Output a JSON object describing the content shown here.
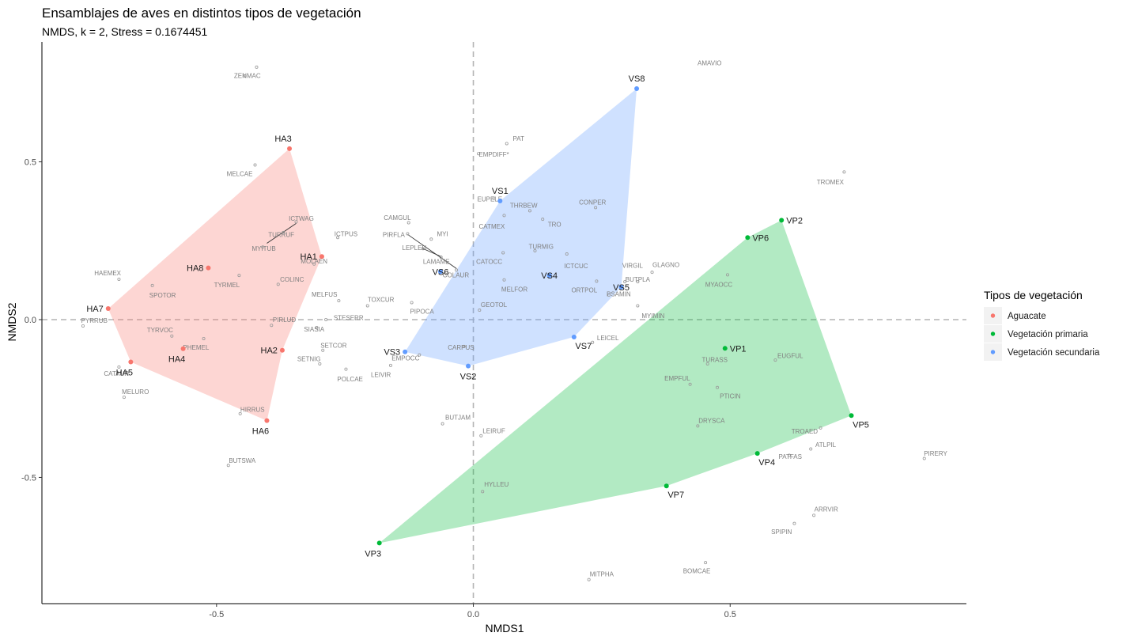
{
  "chart_data": {
    "type": "scatter",
    "title": "Ensamblajes de aves en distintos tipos de vegetación",
    "subtitle": "NMDS, k = 2, Stress = 0.1674451",
    "xlabel": "NMDS1",
    "ylabel": "NMDS2",
    "xlim": [
      -0.84,
      0.96
    ],
    "ylim": [
      -0.9,
      0.88
    ],
    "x_ticks": [
      -0.5,
      0.0,
      0.5
    ],
    "x_tick_labels": [
      "-0.5",
      "0.0",
      "0.5"
    ],
    "y_ticks": [
      -0.5,
      0.0,
      0.5
    ],
    "y_tick_labels": [
      "-0.5",
      "0.0",
      "0.5"
    ],
    "reference_lines": {
      "x": 0,
      "y": 0,
      "style": "dashed"
    },
    "grid": false,
    "legend": {
      "title": "Tipos de vegetación",
      "position": "right",
      "entries": [
        {
          "label": "Aguacate",
          "color": "#F8766D"
        },
        {
          "label": "Vegetación primaria",
          "color": "#00BA38"
        },
        {
          "label": "Vegetación secundaria",
          "color": "#619CFF"
        }
      ]
    },
    "groups": [
      {
        "name": "Aguacate",
        "color": "#F8766D",
        "fill": "#F8766D",
        "hull": [
          "HA3",
          "HA1",
          "HA2",
          "HA6",
          "HA5",
          "HA7"
        ]
      },
      {
        "name": "Vegetación primaria",
        "color": "#00BA38",
        "fill": "#00BA38",
        "hull": [
          "VP2",
          "VP5",
          "VP4",
          "VP7",
          "VP3",
          "VP6"
        ]
      },
      {
        "name": "Vegetación secundaria",
        "color": "#619CFF",
        "fill": "#619CFF",
        "hull": [
          "VS8",
          "VS5",
          "VS7",
          "VS2",
          "VS3",
          "VS1"
        ]
      }
    ],
    "sites": [
      {
        "label": "HA1",
        "group": "Aguacate",
        "x": -0.295,
        "y": 0.2,
        "dx": -1,
        "dy": 0
      },
      {
        "label": "HA2",
        "group": "Aguacate",
        "x": -0.372,
        "y": -0.097,
        "dx": -1,
        "dy": 0
      },
      {
        "label": "HA3",
        "group": "Aguacate",
        "x": -0.358,
        "y": 0.542,
        "dx": -1,
        "dy": -1
      },
      {
        "label": "HA4",
        "group": "Aguacate",
        "x": -0.565,
        "y": -0.092,
        "dx": -1,
        "dy": 1
      },
      {
        "label": "HA5",
        "group": "Aguacate",
        "x": -0.667,
        "y": -0.134,
        "dx": -1,
        "dy": 1
      },
      {
        "label": "HA6",
        "group": "Aguacate",
        "x": -0.402,
        "y": -0.32,
        "dx": -1,
        "dy": 1
      },
      {
        "label": "HA7",
        "group": "Aguacate",
        "x": -0.711,
        "y": 0.035,
        "dx": -1,
        "dy": 0
      },
      {
        "label": "HA8",
        "group": "Aguacate",
        "x": -0.516,
        "y": 0.164,
        "dx": -1,
        "dy": 0
      },
      {
        "label": "VP1",
        "group": "Vegetación primaria",
        "x": 0.49,
        "y": -0.091,
        "dx": 1,
        "dy": 0
      },
      {
        "label": "VP2",
        "group": "Vegetación primaria",
        "x": 0.6,
        "y": 0.315,
        "dx": 1,
        "dy": 0
      },
      {
        "label": "VP3",
        "group": "Vegetación primaria",
        "x": -0.183,
        "y": -0.708,
        "dx": -1,
        "dy": 1
      },
      {
        "label": "VP4",
        "group": "Vegetación primaria",
        "x": 0.553,
        "y": -0.424,
        "dx": 1,
        "dy": 1
      },
      {
        "label": "VP5",
        "group": "Vegetación primaria",
        "x": 0.736,
        "y": -0.304,
        "dx": 1,
        "dy": 1
      },
      {
        "label": "VP6",
        "group": "Vegetación primaria",
        "x": 0.534,
        "y": 0.26,
        "dx": 1,
        "dy": 0
      },
      {
        "label": "VP7",
        "group": "Vegetación primaria",
        "x": 0.376,
        "y": -0.527,
        "dx": 1,
        "dy": 1
      },
      {
        "label": "VS1",
        "group": "Vegetación secundaria",
        "x": 0.052,
        "y": 0.376,
        "dx": 0,
        "dy": -1
      },
      {
        "label": "VS2",
        "group": "Vegetación secundaria",
        "x": -0.01,
        "y": -0.147,
        "dx": 0,
        "dy": 1
      },
      {
        "label": "VS3",
        "group": "Vegetación secundaria",
        "x": -0.133,
        "y": -0.102,
        "dx": -1,
        "dy": 0
      },
      {
        "label": "VS4",
        "group": "Vegetación secundaria",
        "x": 0.148,
        "y": 0.14,
        "dx": 0,
        "dy": 0
      },
      {
        "label": "VS5",
        "group": "Vegetación secundaria",
        "x": 0.288,
        "y": 0.103,
        "dx": 0,
        "dy": 0
      },
      {
        "label": "VS6",
        "group": "Vegetación secundaria",
        "x": -0.064,
        "y": 0.152,
        "dx": 0,
        "dy": 0
      },
      {
        "label": "VS7",
        "group": "Vegetación secundaria",
        "x": 0.196,
        "y": -0.055,
        "dx": 1,
        "dy": 1
      },
      {
        "label": "VS8",
        "group": "Vegetación secundaria",
        "x": 0.318,
        "y": 0.732,
        "dx": 0,
        "dy": -1
      }
    ],
    "species": [
      {
        "label": "AMAVIO",
        "x": -0.422,
        "y": 0.8
      },
      {
        "label": "ZENMAC",
        "x": -0.445,
        "y": 0.772
      },
      {
        "label": "MELCAE",
        "x": -0.425,
        "y": 0.49
      },
      {
        "label": "ICTWAG",
        "x": -0.345,
        "y": 0.31
      },
      {
        "label": "TURRUF",
        "x": -0.37,
        "y": 0.276
      },
      {
        "label": "MYITUB",
        "x": -0.41,
        "y": 0.23
      },
      {
        "label": "ICTPUS",
        "x": -0.264,
        "y": 0.26
      },
      {
        "label": "MOLAEN",
        "x": -0.31,
        "y": 0.176
      },
      {
        "label": "COLINC",
        "x": -0.38,
        "y": 0.112
      },
      {
        "label": "TYRMEL",
        "x": -0.456,
        "y": 0.14
      },
      {
        "label": "HAEMEX",
        "x": -0.69,
        "y": 0.128
      },
      {
        "label": "SPOTOR",
        "x": -0.625,
        "y": 0.108
      },
      {
        "label": "MELFUS",
        "x": -0.262,
        "y": 0.06
      },
      {
        "label": "TOXCUR",
        "x": -0.206,
        "y": 0.044
      },
      {
        "label": "PYRRUB",
        "x": -0.76,
        "y": -0.02
      },
      {
        "label": "PIRLUD",
        "x": -0.393,
        "y": -0.018
      },
      {
        "label": "STESERR",
        "x": -0.287,
        "y": 0.0
      },
      {
        "label": "SIASIA",
        "x": -0.305,
        "y": -0.025
      },
      {
        "label": "TYRVOC",
        "x": -0.587,
        "y": -0.052
      },
      {
        "label": "PHEMEL",
        "x": -0.525,
        "y": -0.06
      },
      {
        "label": "SETCOR",
        "x": -0.293,
        "y": -0.097
      },
      {
        "label": "SETNIG",
        "x": -0.299,
        "y": -0.14
      },
      {
        "label": "POLCAE",
        "x": -0.248,
        "y": -0.157
      },
      {
        "label": "LEIVIR",
        "x": -0.161,
        "y": -0.145
      },
      {
        "label": "CATAUR",
        "x": -0.69,
        "y": -0.15
      },
      {
        "label": "MELURO",
        "x": -0.68,
        "y": -0.246
      },
      {
        "label": "HIRRUS",
        "x": -0.454,
        "y": -0.298
      },
      {
        "label": "BUTSWA",
        "x": -0.477,
        "y": -0.462
      },
      {
        "label": "PAT",
        "x": 0.065,
        "y": 0.558
      },
      {
        "label": "EMPDIFF*",
        "x": 0.01,
        "y": 0.526
      },
      {
        "label": "CAMGUL",
        "x": -0.126,
        "y": 0.307
      },
      {
        "label": "MYI",
        "x": -0.082,
        "y": 0.255
      },
      {
        "label": "PIRFLA",
        "x": -0.128,
        "y": 0.272
      },
      {
        "label": "LEPLEU",
        "x": -0.098,
        "y": 0.225
      },
      {
        "label": "LAMAME",
        "x": -0.063,
        "y": 0.198
      },
      {
        "label": "COLAUR",
        "x": -0.033,
        "y": 0.157
      },
      {
        "label": "PIPOCA",
        "x": -0.12,
        "y": 0.054
      },
      {
        "label": "EUPELE",
        "x": 0.04,
        "y": 0.385
      },
      {
        "label": "THRBEW",
        "x": 0.11,
        "y": 0.345
      },
      {
        "label": "CATMEX",
        "x": 0.06,
        "y": 0.33
      },
      {
        "label": "TRO",
        "x": 0.135,
        "y": 0.318
      },
      {
        "label": "CONPER",
        "x": 0.238,
        "y": 0.355
      },
      {
        "label": "TURMIG",
        "x": 0.12,
        "y": 0.218
      },
      {
        "label": "CATOCC",
        "x": 0.058,
        "y": 0.212
      },
      {
        "label": "ICTCUC",
        "x": 0.182,
        "y": 0.208
      },
      {
        "label": "MELFOR",
        "x": 0.06,
        "y": 0.126
      },
      {
        "label": "ORTPOL",
        "x": 0.24,
        "y": 0.122
      },
      {
        "label": "PSAMIN",
        "x": 0.264,
        "y": 0.078
      },
      {
        "label": "GEOTOL",
        "x": 0.012,
        "y": 0.03
      },
      {
        "label": "VIRGIL",
        "x": 0.295,
        "y": 0.12
      },
      {
        "label": "BUTPLA",
        "x": 0.32,
        "y": 0.12
      },
      {
        "label": "GLAGNO",
        "x": 0.348,
        "y": 0.15
      },
      {
        "label": "MYIMIN",
        "x": 0.32,
        "y": 0.044
      },
      {
        "label": "MYAOCC",
        "x": 0.495,
        "y": 0.142
      },
      {
        "label": "LEICEL",
        "x": 0.232,
        "y": -0.072
      },
      {
        "label": "CARPUS",
        "x": -0.018,
        "y": -0.085
      },
      {
        "label": "EMPOCC",
        "x": -0.105,
        "y": -0.112
      },
      {
        "label": "TROMEX",
        "x": 0.722,
        "y": 0.468
      },
      {
        "label": "TURASS",
        "x": 0.456,
        "y": -0.14
      },
      {
        "label": "EUGFUL",
        "x": 0.588,
        "y": -0.128
      },
      {
        "label": "EMPFUL",
        "x": 0.422,
        "y": -0.205
      },
      {
        "label": "PTICIN",
        "x": 0.475,
        "y": -0.215
      },
      {
        "label": "DRYSCA",
        "x": 0.437,
        "y": -0.337
      },
      {
        "label": "TROAED",
        "x": 0.676,
        "y": -0.343
      },
      {
        "label": "ATLPIL",
        "x": 0.657,
        "y": -0.41
      },
      {
        "label": "PATFAS",
        "x": 0.615,
        "y": -0.43
      },
      {
        "label": "PIRERY",
        "x": 0.878,
        "y": -0.44
      },
      {
        "label": "BUTJAM",
        "x": -0.06,
        "y": -0.33
      },
      {
        "label": "LEIRUF",
        "x": 0.015,
        "y": -0.368
      },
      {
        "label": "HYLLEU",
        "x": 0.018,
        "y": -0.545
      },
      {
        "label": "ARRVIR",
        "x": 0.663,
        "y": -0.62
      },
      {
        "label": "SPIPIN",
        "x": 0.625,
        "y": -0.646
      },
      {
        "label": "MITPHA",
        "x": 0.225,
        "y": -0.824
      },
      {
        "label": "BOMCAE",
        "x": 0.452,
        "y": -0.77
      }
    ],
    "species_label_pos": {
      "AMAVIO": [
        0.46,
        0.814
      ],
      "ZENMAC": [
        -0.44,
        0.774
      ],
      "MELCAE": [
        -0.455,
        0.462
      ],
      "ICTWAG": [
        -0.335,
        0.321
      ],
      "TURRUF": [
        -0.374,
        0.269
      ],
      "MYITUB": [
        -0.408,
        0.226
      ],
      "ICTPUS": [
        -0.248,
        0.272
      ],
      "MOLAEN": [
        -0.31,
        0.185
      ],
      "COLINC": [
        -0.353,
        0.128
      ],
      "TYRMEL": [
        -0.48,
        0.11
      ],
      "HAEMEX": [
        -0.712,
        0.148
      ],
      "SPOTOR": [
        -0.605,
        0.078
      ],
      "MELFUS": [
        -0.29,
        0.08
      ],
      "TOXCUR": [
        -0.18,
        0.064
      ],
      "PYRRUB": [
        -0.738,
        -0.002
      ],
      "PIRLUD": [
        -0.368,
        0.0
      ],
      "STESERR": [
        -0.243,
        0.006
      ],
      "SIASIA": [
        -0.31,
        -0.03
      ],
      "TYRVOC": [
        -0.61,
        -0.032
      ],
      "PHEMEL": [
        -0.54,
        -0.088
      ],
      "SETCOR": [
        -0.272,
        -0.082
      ],
      "SETNIG": [
        -0.32,
        -0.124
      ],
      "POLCAE": [
        -0.24,
        -0.188
      ],
      "LEIVIR": [
        -0.18,
        -0.174
      ],
      "CATAUR": [
        -0.695,
        -0.17
      ],
      "MELURO": [
        -0.658,
        -0.228
      ],
      "HIRRUS": [
        -0.43,
        -0.284
      ],
      "BUTSWA": [
        -0.45,
        -0.446
      ],
      "PAT": [
        0.088,
        0.574
      ],
      "EMPDIFF*": [
        0.04,
        0.524
      ],
      "CAMGUL": [
        -0.148,
        0.324
      ],
      "MYI": [
        -0.06,
        0.272
      ],
      "PIRFLA": [
        -0.155,
        0.27
      ],
      "LEPLEU": [
        -0.115,
        0.228
      ],
      "LAMAME": [
        -0.072,
        0.184
      ],
      "COLAUR": [
        -0.034,
        0.142
      ],
      "PIPOCA": [
        -0.1,
        0.026
      ],
      "EUPELE": [
        0.032,
        0.382
      ],
      "THRBEW": [
        0.098,
        0.362
      ],
      "CATMEX": [
        0.036,
        0.296
      ],
      "TRO": [
        0.158,
        0.302
      ],
      "CONPER": [
        0.232,
        0.372
      ],
      "TURMIG": [
        0.132,
        0.232
      ],
      "CATOCC": [
        0.031,
        0.184
      ],
      "ICTCUC": [
        0.2,
        0.17
      ],
      "MELFOR": [
        0.08,
        0.096
      ],
      "ORTPOL": [
        0.216,
        0.094
      ],
      "PSAMIN": [
        0.283,
        0.082
      ],
      "GEOTOL": [
        0.04,
        0.048
      ],
      "VIRGIL": [
        0.31,
        0.172
      ],
      "BUTPLA": [
        0.32,
        0.128
      ],
      "GLAGNO": [
        0.375,
        0.174
      ],
      "MYIMIN": [
        0.35,
        0.012
      ],
      "MYAOCC": [
        0.478,
        0.112
      ],
      "LEICEL": [
        0.262,
        -0.058
      ],
      "CARPUS": [
        -0.024,
        -0.088
      ],
      "EMPOCC": [
        -0.132,
        -0.122
      ],
      "TROMEX": [
        0.695,
        0.436
      ],
      "TURASS": [
        0.47,
        -0.126
      ],
      "EUGFUL": [
        0.617,
        -0.114
      ],
      "EMPFUL": [
        0.397,
        -0.186
      ],
      "PTICIN": [
        0.5,
        -0.242
      ],
      "DRYSCA": [
        0.464,
        -0.32
      ],
      "TROAED": [
        0.645,
        -0.354
      ],
      "ATLPIL": [
        0.686,
        -0.396
      ],
      "PATFAS": [
        0.617,
        -0.434
      ],
      "PIRERY": [
        0.9,
        -0.424
      ],
      "BUTJAM": [
        -0.03,
        -0.31
      ],
      "LEIRUF": [
        0.04,
        -0.352
      ],
      "HYLLEU": [
        0.045,
        -0.522
      ],
      "ARRVIR": [
        0.687,
        -0.6
      ],
      "SPIPIN": [
        0.6,
        -0.672
      ],
      "MITPHA": [
        0.25,
        -0.806
      ],
      "BOMCAE": [
        0.435,
        -0.796
      ]
    },
    "leader_lines": [
      {
        "from": [
          -0.402,
          0.242
        ],
        "to": [
          -0.345,
          0.305
        ]
      },
      {
        "from": [
          -0.128,
          0.27
        ],
        "to": [
          -0.033,
          0.162
        ]
      },
      {
        "from": [
          -0.098,
          0.225
        ],
        "to": [
          -0.063,
          0.2
        ]
      }
    ]
  }
}
